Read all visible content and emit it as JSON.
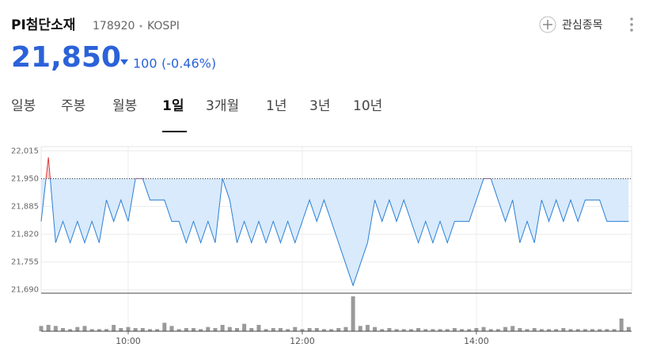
{
  "header": {
    "title": "PI첨단소재",
    "code": "178920",
    "market": "KOSPI",
    "watch": "관심종목"
  },
  "quote": {
    "price": "21,850",
    "change": "100",
    "change_pct": "(-0.46%)"
  },
  "tabs": {
    "items": [
      "일봉",
      "주봉",
      "월봉",
      "1일",
      "3개월",
      "1년",
      "3년",
      "10년"
    ],
    "active": 3
  },
  "chart_data": {
    "type": "line",
    "x": [
      "09:00",
      "09:05",
      "09:10",
      "09:15",
      "09:20",
      "09:25",
      "09:30",
      "09:35",
      "09:40",
      "09:45",
      "09:50",
      "09:55",
      "10:00",
      "10:05",
      "10:10",
      "10:15",
      "10:20",
      "10:25",
      "10:30",
      "10:35",
      "10:40",
      "10:45",
      "10:50",
      "10:55",
      "11:00",
      "11:05",
      "11:10",
      "11:15",
      "11:20",
      "11:25",
      "11:30",
      "11:35",
      "11:40",
      "11:45",
      "11:50",
      "11:55",
      "12:00",
      "12:05",
      "12:10",
      "12:15",
      "12:20",
      "12:25",
      "12:30",
      "12:35",
      "12:40",
      "12:45",
      "12:50",
      "12:55",
      "13:00",
      "13:05",
      "13:10",
      "13:15",
      "13:20",
      "13:25",
      "13:30",
      "13:35",
      "13:40",
      "13:45",
      "13:50",
      "13:55",
      "14:00",
      "14:05",
      "14:10",
      "14:15",
      "14:20",
      "14:25",
      "14:30",
      "14:35",
      "14:40",
      "14:45",
      "14:50",
      "14:55",
      "15:00",
      "15:05",
      "15:10",
      "15:15",
      "15:20",
      "15:25",
      "15:30",
      "15:35",
      "15:40",
      "15:45"
    ],
    "series": [
      {
        "name": "price",
        "color": "#2b7fd4",
        "values": [
          21850,
          22000,
          21800,
          21850,
          21800,
          21850,
          21800,
          21850,
          21800,
          21900,
          21850,
          21900,
          21850,
          21950,
          21950,
          21900,
          21900,
          21900,
          21850,
          21850,
          21800,
          21850,
          21800,
          21850,
          21800,
          21950,
          21900,
          21800,
          21850,
          21800,
          21850,
          21800,
          21850,
          21800,
          21850,
          21800,
          21850,
          21900,
          21850,
          21900,
          21850,
          21800,
          21750,
          21700,
          21750,
          21800,
          21900,
          21850,
          21900,
          21850,
          21900,
          21850,
          21800,
          21850,
          21800,
          21850,
          21800,
          21850,
          21850,
          21850,
          21900,
          21950,
          21950,
          21900,
          21850,
          21900,
          21800,
          21850,
          21800,
          21900,
          21850,
          21900,
          21850,
          21900,
          21850,
          21900,
          21900,
          21900,
          21850,
          21850,
          21850,
          21850
        ]
      },
      {
        "name": "volume",
        "color": "#9a9a9a",
        "values": [
          5,
          6,
          5,
          3,
          2,
          4,
          5,
          2,
          2,
          2,
          6,
          3,
          4,
          3,
          3,
          2,
          2,
          8,
          5,
          2,
          3,
          3,
          2,
          4,
          3,
          6,
          4,
          3,
          7,
          3,
          6,
          2,
          3,
          3,
          2,
          4,
          2,
          3,
          3,
          2,
          2,
          3,
          4,
          33,
          5,
          6,
          4,
          2,
          3,
          2,
          2,
          2,
          3,
          2,
          2,
          2,
          2,
          3,
          2,
          2,
          3,
          4,
          2,
          2,
          4,
          5,
          3,
          2,
          3,
          2,
          2,
          2,
          3,
          2,
          2,
          2,
          2,
          2,
          2,
          2,
          12,
          4
        ]
      }
    ],
    "up_color": "#e03b3b",
    "fill": "#d8eafc",
    "reference": 21950,
    "xlim": [
      "09:00",
      "15:47"
    ],
    "xticks": [
      "10:00",
      "12:00",
      "14:00"
    ],
    "ylim": [
      21682,
      22025
    ],
    "yticks": [
      {
        "value": 22015,
        "label": "22,015"
      },
      {
        "value": 21950,
        "label": "21,950"
      },
      {
        "value": 21885,
        "label": "21,885"
      },
      {
        "value": 21820,
        "label": "21,820"
      },
      {
        "value": 21755,
        "label": "21,755"
      },
      {
        "value": 21690,
        "label": "21,690"
      }
    ],
    "grid": true
  }
}
